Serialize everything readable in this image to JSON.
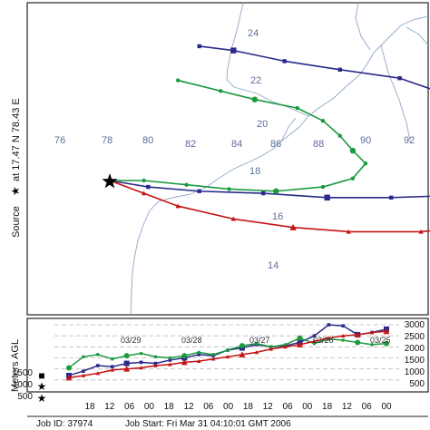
{
  "map": {
    "source_label": "Source",
    "source_coords": "at  17.47 N   78.43 E",
    "lon_labels": [
      "76",
      "78",
      "80",
      "82",
      "84",
      "86",
      "88",
      "90",
      "92"
    ],
    "lat_labels": [
      "24",
      "22",
      "20",
      "18",
      "16",
      "14"
    ]
  },
  "profile": {
    "ylabel": "Meters AGL",
    "left_ticks": [
      "1500",
      "1000",
      "500"
    ],
    "right_ticks": [
      "3000",
      "2500",
      "2000",
      "1500",
      "1000",
      "500"
    ],
    "hour_ticks": [
      "18",
      "12",
      "06",
      "00",
      "18",
      "12",
      "06",
      "00",
      "18",
      "12",
      "06",
      "00",
      "18",
      "12",
      "06",
      "00"
    ],
    "date_labels": [
      "03/29",
      "03/28",
      "03/27",
      "03/26",
      "03/25"
    ]
  },
  "footer": {
    "job_id": "Job ID: 37974",
    "job_start": "Job Start: Fri Mar 31 04:10:01 GMT 2006"
  },
  "colors": {
    "blue": "#2a2a8c",
    "green": "#1a9a3e",
    "red": "#c41414",
    "grid_label": "#5b6f9a",
    "coast": "#8fa7c8"
  },
  "chart_data": {
    "type": "line",
    "series": [
      {
        "values": [
          [
            78.4,
            17.5
          ],
          [
            79.3,
            17.2
          ],
          [
            80.5,
            17.0
          ],
          [
            82.0,
            16.9
          ],
          [
            83.5,
            16.7
          ],
          [
            85.0,
            16.7
          ],
          [
            86.5,
            16.8
          ],
          [
            87.6,
            17.2
          ],
          [
            88.4,
            17.9
          ],
          [
            88.3,
            18.8
          ],
          [
            88.0,
            19.6
          ],
          [
            87.4,
            20.5
          ],
          [
            86.5,
            21.4
          ],
          [
            85.2,
            22.3
          ],
          [
            83.8,
            22.7
          ],
          [
            82.5,
            23.1
          ],
          [
            81.3,
            23.6
          ],
          [
            80.5,
            23.8
          ]
        ]
      },
      {
        "values": [
          [
            78.4,
            17.5
          ],
          [
            79.2,
            17.5
          ],
          [
            80.2,
            17.3
          ],
          [
            81.2,
            17.1
          ],
          [
            82.3,
            17.0
          ],
          [
            83.4,
            17.2
          ],
          [
            84.1,
            17.6
          ],
          [
            84.4,
            18.3
          ],
          [
            84.1,
            18.9
          ],
          [
            83.8,
            19.6
          ],
          [
            83.4,
            20.3
          ],
          [
            82.8,
            20.9
          ],
          [
            81.8,
            21.3
          ],
          [
            81.0,
            21.7
          ],
          [
            80.0,
            22.2
          ]
        ]
      },
      {
        "values": [
          [
            78.4,
            17.5
          ],
          [
            79.2,
            16.9
          ],
          [
            80.0,
            16.3
          ],
          [
            81.3,
            15.7
          ],
          [
            82.7,
            15.3
          ],
          [
            84.0,
            15.1
          ],
          [
            85.7,
            15.1
          ],
          [
            87.2,
            15.4
          ],
          [
            88.4,
            15.5
          ],
          [
            89.3,
            15.6
          ],
          [
            89.8,
            16.0
          ],
          [
            90.1,
            16.9
          ],
          [
            89.9,
            17.6
          ],
          [
            89.6,
            18.3
          ]
        ]
      }
    ],
    "profile_series": [
      {
        "values": [
          [
            "03/31 00",
            700
          ],
          [
            "03/30 18",
            900
          ],
          [
            "03/30 12",
            1150
          ],
          [
            "03/30 06",
            1100
          ],
          [
            "03/30 00",
            1250
          ],
          [
            "03/29 18",
            1300
          ],
          [
            "03/29 12",
            1250
          ],
          [
            "03/29 06",
            1400
          ],
          [
            "03/29 00",
            1500
          ],
          [
            "03/28 18",
            1650
          ],
          [
            "03/28 12",
            1600
          ],
          [
            "03/28 06",
            1850
          ],
          [
            "03/28 00",
            1950
          ],
          [
            "03/27 18",
            2100
          ],
          [
            "03/27 12",
            2000
          ],
          [
            "03/27 06",
            2050
          ],
          [
            "03/27 00",
            2200
          ],
          [
            "03/26 18",
            2500
          ],
          [
            "03/26 12",
            3000
          ],
          [
            "03/26 06",
            2950
          ],
          [
            "03/26 00",
            2550
          ],
          [
            "03/25 18",
            2650
          ],
          [
            "03/25 12",
            2800
          ]
        ]
      },
      {
        "values": [
          [
            "03/31 00",
            1050
          ],
          [
            "03/30 18",
            1550
          ],
          [
            "03/30 12",
            1650
          ],
          [
            "03/30 06",
            1450
          ],
          [
            "03/30 00",
            1600
          ],
          [
            "03/29 18",
            1700
          ],
          [
            "03/29 12",
            1550
          ],
          [
            "03/29 06",
            1500
          ],
          [
            "03/29 00",
            1600
          ],
          [
            "03/28 18",
            1750
          ],
          [
            "03/28 12",
            1650
          ],
          [
            "03/28 06",
            1850
          ],
          [
            "03/28 00",
            2050
          ],
          [
            "03/27 18",
            2150
          ],
          [
            "03/27 12",
            2000
          ],
          [
            "03/27 06",
            2100
          ],
          [
            "03/27 00",
            2400
          ],
          [
            "03/26 18",
            2150
          ],
          [
            "03/26 12",
            2350
          ],
          [
            "03/26 06",
            2300
          ],
          [
            "03/26 00",
            2200
          ],
          [
            "03/25 18",
            2100
          ],
          [
            "03/25 12",
            2150
          ]
        ]
      },
      {
        "values": [
          [
            "03/31 00",
            600
          ],
          [
            "03/30 18",
            700
          ],
          [
            "03/30 12",
            800
          ],
          [
            "03/30 06",
            950
          ],
          [
            "03/30 00",
            1000
          ],
          [
            "03/29 18",
            1050
          ],
          [
            "03/29 12",
            1150
          ],
          [
            "03/29 06",
            1200
          ],
          [
            "03/29 00",
            1300
          ],
          [
            "03/28 18",
            1350
          ],
          [
            "03/28 12",
            1450
          ],
          [
            "03/28 06",
            1550
          ],
          [
            "03/28 00",
            1650
          ],
          [
            "03/27 18",
            1750
          ],
          [
            "03/27 12",
            1900
          ],
          [
            "03/27 06",
            2000
          ],
          [
            "03/27 00",
            2100
          ],
          [
            "03/26 18",
            2250
          ],
          [
            "03/26 12",
            2400
          ],
          [
            "03/26 06",
            2500
          ],
          [
            "03/26 00",
            2550
          ],
          [
            "03/25 18",
            2650
          ],
          [
            "03/25 12",
            2700
          ]
        ]
      }
    ]
  }
}
